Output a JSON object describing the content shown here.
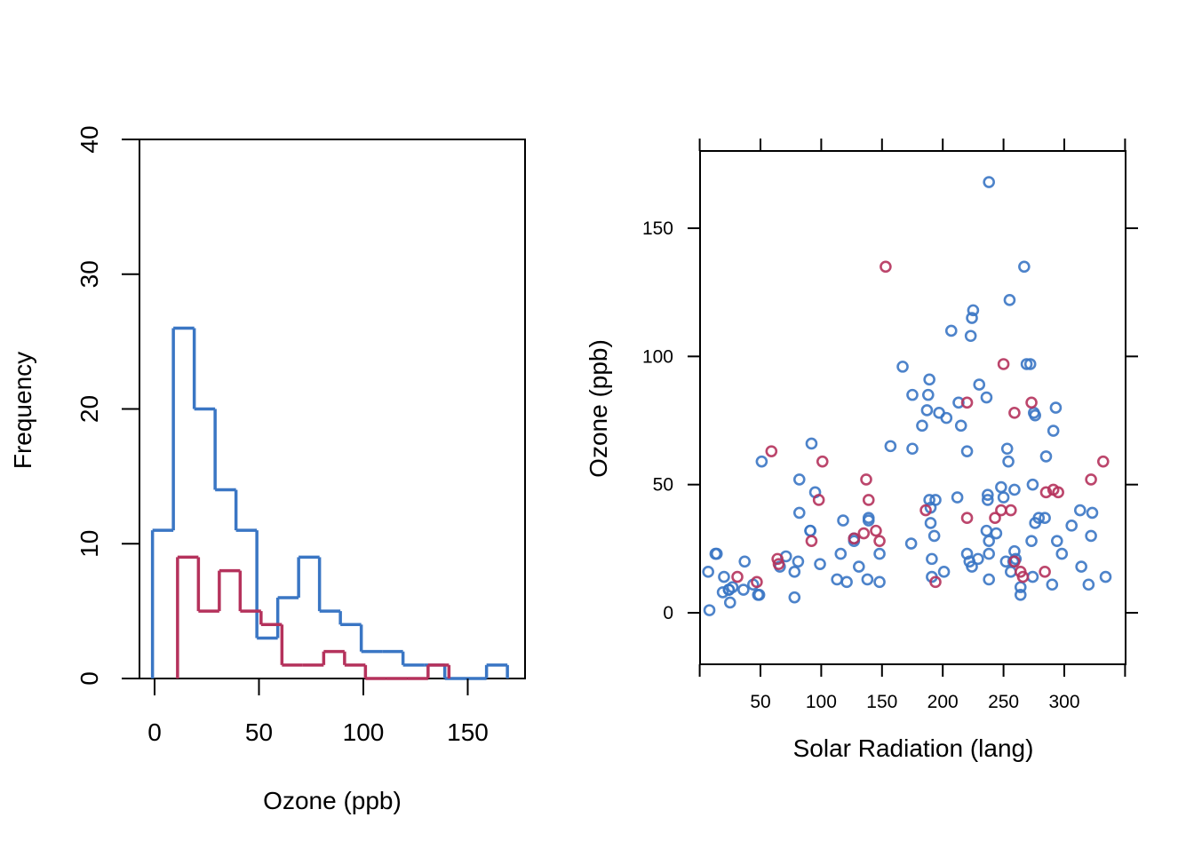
{
  "colors": {
    "blue": "#3A76C4",
    "red": "#B5325C",
    "axis": "#000000"
  },
  "chart_data": [
    {
      "type": "histogram",
      "xlabel": "Ozone (ppb)",
      "ylabel": "Frequency",
      "x_ticks": [
        0,
        50,
        100,
        150
      ],
      "y_ticks": [
        0,
        10,
        20,
        30,
        40
      ],
      "xlim": [
        -7,
        177
      ],
      "ylim": [
        0,
        40
      ],
      "series": [
        {
          "color": "blue",
          "bins": [
            [
              -1,
              9,
              11
            ],
            [
              9,
              19,
              26
            ],
            [
              19,
              29,
              20
            ],
            [
              29,
              39,
              14
            ],
            [
              39,
              49,
              11
            ],
            [
              49,
              59,
              3
            ],
            [
              59,
              69,
              6
            ],
            [
              69,
              79,
              9
            ],
            [
              79,
              89,
              5
            ],
            [
              89,
              99,
              4
            ],
            [
              99,
              109,
              2
            ],
            [
              109,
              119,
              2
            ],
            [
              119,
              129,
              1
            ],
            [
              129,
              139,
              1
            ],
            [
              139,
              149,
              0
            ],
            [
              149,
              159,
              0
            ],
            [
              159,
              169,
              1
            ]
          ]
        },
        {
          "color": "red",
          "bins": [
            [
              11,
              21,
              9
            ],
            [
              21,
              31,
              5
            ],
            [
              31,
              41,
              8
            ],
            [
              41,
              51,
              5
            ],
            [
              51,
              61,
              4
            ],
            [
              61,
              71,
              1
            ],
            [
              71,
              81,
              1
            ],
            [
              81,
              91,
              2
            ],
            [
              91,
              101,
              1
            ],
            [
              101,
              111,
              0
            ],
            [
              111,
              121,
              0
            ],
            [
              121,
              131,
              0
            ],
            [
              131,
              141,
              1
            ]
          ]
        }
      ]
    },
    {
      "type": "scatter",
      "xlabel": "Solar Radiation (lang)",
      "ylabel": "Ozone (ppb)",
      "x_ticks": [
        50,
        100,
        150,
        200,
        250,
        300
      ],
      "y_ticks": [
        0,
        50,
        100,
        150
      ],
      "xlim": [
        0,
        350
      ],
      "ylim": [
        -20,
        180
      ],
      "series": [
        {
          "color": "blue",
          "points": [
            [
              7,
              16
            ],
            [
              8,
              1
            ],
            [
              13,
              23
            ],
            [
              14,
              23
            ],
            [
              19,
              8
            ],
            [
              20,
              14
            ],
            [
              24,
              9
            ],
            [
              24,
              9
            ],
            [
              25,
              4
            ],
            [
              27,
              10
            ],
            [
              36,
              9
            ],
            [
              37,
              20
            ],
            [
              44,
              11
            ],
            [
              48,
              7
            ],
            [
              49,
              7
            ],
            [
              51,
              59
            ],
            [
              66,
              18
            ],
            [
              71,
              22
            ],
            [
              78,
              6
            ],
            [
              78,
              16
            ],
            [
              81,
              20
            ],
            [
              82,
              39
            ],
            [
              82,
              52
            ],
            [
              91,
              32
            ],
            [
              91,
              32
            ],
            [
              92,
              66
            ],
            [
              95,
              47
            ],
            [
              99,
              19
            ],
            [
              113,
              13
            ],
            [
              116,
              23
            ],
            [
              118,
              36
            ],
            [
              121,
              12
            ],
            [
              127,
              28
            ],
            [
              127,
              29
            ],
            [
              131,
              18
            ],
            [
              138,
              13
            ],
            [
              139,
              36
            ],
            [
              139,
              37
            ],
            [
              148,
              23
            ],
            [
              148,
              12
            ],
            [
              157,
              65
            ],
            [
              167,
              96
            ],
            [
              174,
              27
            ],
            [
              175,
              64
            ],
            [
              175,
              85
            ],
            [
              183,
              73
            ],
            [
              187,
              79
            ],
            [
              188,
              85
            ],
            [
              189,
              91
            ],
            [
              189,
              44
            ],
            [
              190,
              41
            ],
            [
              190,
              35
            ],
            [
              191,
              21
            ],
            [
              191,
              14
            ],
            [
              193,
              30
            ],
            [
              194,
              44
            ],
            [
              197,
              78
            ],
            [
              201,
              16
            ],
            [
              203,
              76
            ],
            [
              207,
              110
            ],
            [
              212,
              45
            ],
            [
              213,
              82
            ],
            [
              215,
              73
            ],
            [
              220,
              23
            ],
            [
              220,
              63
            ],
            [
              222,
              20
            ],
            [
              223,
              108
            ],
            [
              224,
              115
            ],
            [
              224,
              18
            ],
            [
              225,
              118
            ],
            [
              229,
              21
            ],
            [
              230,
              89
            ],
            [
              236,
              32
            ],
            [
              236,
              84
            ],
            [
              237,
              44
            ],
            [
              237,
              46
            ],
            [
              238,
              168
            ],
            [
              238,
              28
            ],
            [
              238,
              23
            ],
            [
              238,
              13
            ],
            [
              244,
              31
            ],
            [
              248,
              49
            ],
            [
              250,
              45
            ],
            [
              252,
              20
            ],
            [
              253,
              64
            ],
            [
              254,
              59
            ],
            [
              255,
              122
            ],
            [
              256,
              16
            ],
            [
              258,
              20
            ],
            [
              259,
              48
            ],
            [
              259,
              24
            ],
            [
              260,
              21
            ],
            [
              264,
              7
            ],
            [
              264,
              10
            ],
            [
              267,
              135
            ],
            [
              269,
              97
            ],
            [
              272,
              97
            ],
            [
              273,
              28
            ],
            [
              274,
              14
            ],
            [
              274,
              50
            ],
            [
              275,
              78
            ],
            [
              276,
              35
            ],
            [
              276,
              77
            ],
            [
              279,
              37
            ],
            [
              284,
              37
            ],
            [
              285,
              61
            ],
            [
              290,
              11
            ],
            [
              291,
              71
            ],
            [
              293,
              80
            ],
            [
              294,
              28
            ],
            [
              298,
              23
            ],
            [
              306,
              34
            ],
            [
              313,
              40
            ],
            [
              314,
              18
            ],
            [
              320,
              11
            ],
            [
              322,
              30
            ],
            [
              323,
              39
            ],
            [
              334,
              14
            ]
          ]
        },
        {
          "color": "red",
          "points": [
            [
              31,
              14
            ],
            [
              47,
              12
            ],
            [
              59,
              63
            ],
            [
              64,
              21
            ],
            [
              65,
              19
            ],
            [
              92,
              28
            ],
            [
              98,
              44
            ],
            [
              101,
              59
            ],
            [
              127,
              29
            ],
            [
              135,
              31
            ],
            [
              137,
              52
            ],
            [
              139,
              44
            ],
            [
              145,
              32
            ],
            [
              148,
              28
            ],
            [
              153,
              135
            ],
            [
              186,
              40
            ],
            [
              194,
              12
            ],
            [
              220,
              82
            ],
            [
              220,
              37
            ],
            [
              243,
              37
            ],
            [
              248,
              40
            ],
            [
              250,
              97
            ],
            [
              256,
              40
            ],
            [
              259,
              78
            ],
            [
              259,
              20
            ],
            [
              264,
              16
            ],
            [
              266,
              14
            ],
            [
              273,
              82
            ],
            [
              284,
              16
            ],
            [
              285,
              47
            ],
            [
              291,
              48
            ],
            [
              295,
              47
            ],
            [
              322,
              52
            ],
            [
              332,
              59
            ]
          ]
        }
      ]
    }
  ]
}
